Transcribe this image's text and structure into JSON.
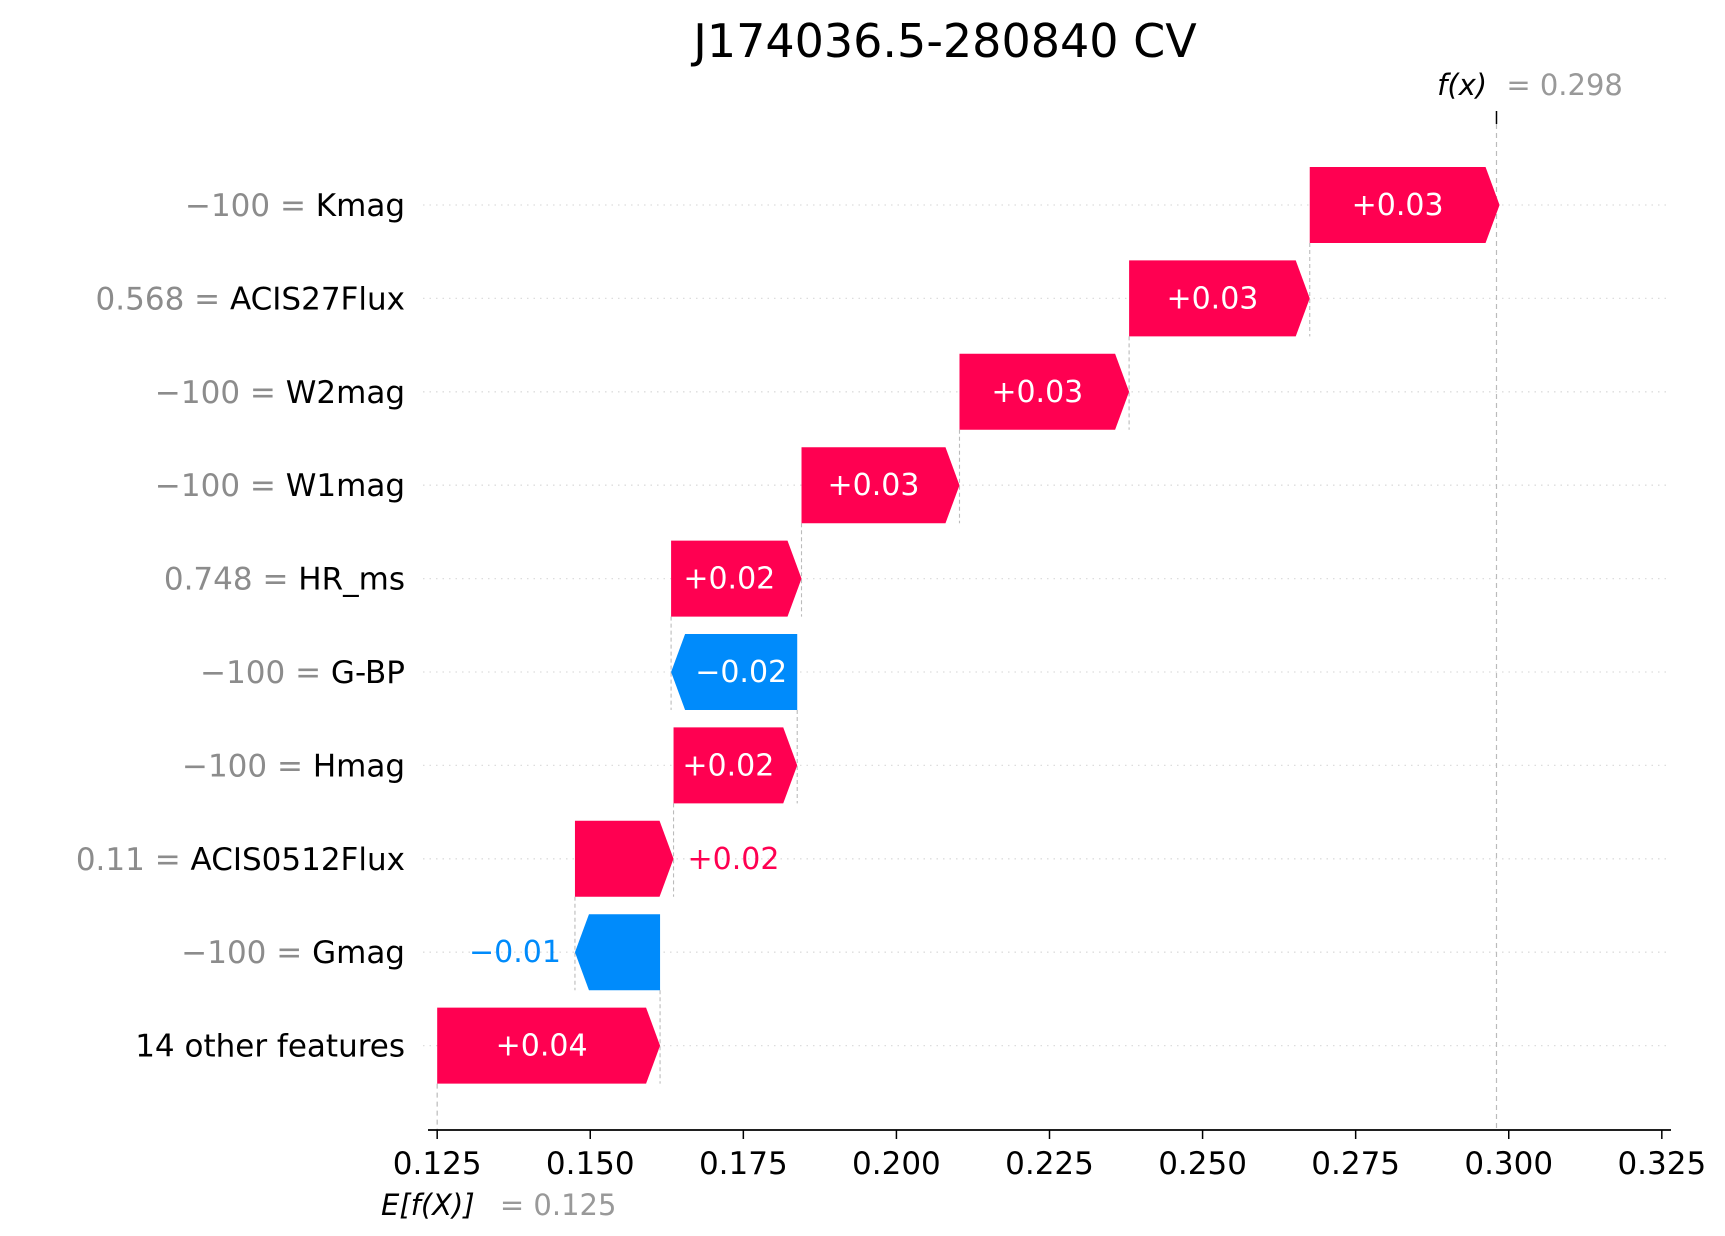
{
  "chart_data": {
    "type": "waterfall",
    "title": "J174036.5-280840 CV",
    "base_value": 0.125,
    "base_label": "E[f(X)]",
    "base_value_text": "0.125",
    "output_value": 0.298,
    "output_label": "f(x)",
    "output_value_text": "0.298",
    "xlim": [
      0.1235,
      0.3265
    ],
    "xticks": [
      "0.125",
      "0.150",
      "0.175",
      "0.200",
      "0.225",
      "0.250",
      "0.275",
      "0.300",
      "0.325"
    ],
    "xtick_values": [
      0.125,
      0.15,
      0.175,
      0.2,
      0.225,
      0.25,
      0.275,
      0.3,
      0.325
    ],
    "grid": "horizontal dotted",
    "features": [
      {
        "value_text": "−100",
        "name": "Kmag",
        "start": 0.2675,
        "end": 0.2985,
        "label": "+0.03"
      },
      {
        "value_text": "0.568",
        "name": "ACIS27Flux",
        "start": 0.238,
        "end": 0.2675,
        "label": "+0.03"
      },
      {
        "value_text": "−100",
        "name": "W2mag",
        "start": 0.2103,
        "end": 0.238,
        "label": "+0.03"
      },
      {
        "value_text": "−100",
        "name": "W1mag",
        "start": 0.1845,
        "end": 0.2103,
        "label": "+0.03"
      },
      {
        "value_text": "0.748",
        "name": "HR_ms",
        "start": 0.1632,
        "end": 0.1845,
        "label": "+0.02"
      },
      {
        "value_text": "−100",
        "name": "G-BP",
        "start": 0.1838,
        "end": 0.1632,
        "label": "−0.02"
      },
      {
        "value_text": "−100",
        "name": "Hmag",
        "start": 0.1636,
        "end": 0.1838,
        "label": "+0.02"
      },
      {
        "value_text": "0.11",
        "name": "ACIS0512Flux",
        "start": 0.1475,
        "end": 0.1636,
        "label": "+0.02"
      },
      {
        "value_text": "−100",
        "name": "Gmag",
        "start": 0.1614,
        "end": 0.1475,
        "label": "−0.01"
      },
      {
        "value_text": "",
        "name": "14 other features",
        "start": 0.125,
        "end": 0.1614,
        "label": "+0.04"
      }
    ],
    "colors": {
      "positive": "#ff0051",
      "negative": "#008bfb",
      "grid": "#dddddd",
      "guide": "#bbbbbb"
    }
  }
}
